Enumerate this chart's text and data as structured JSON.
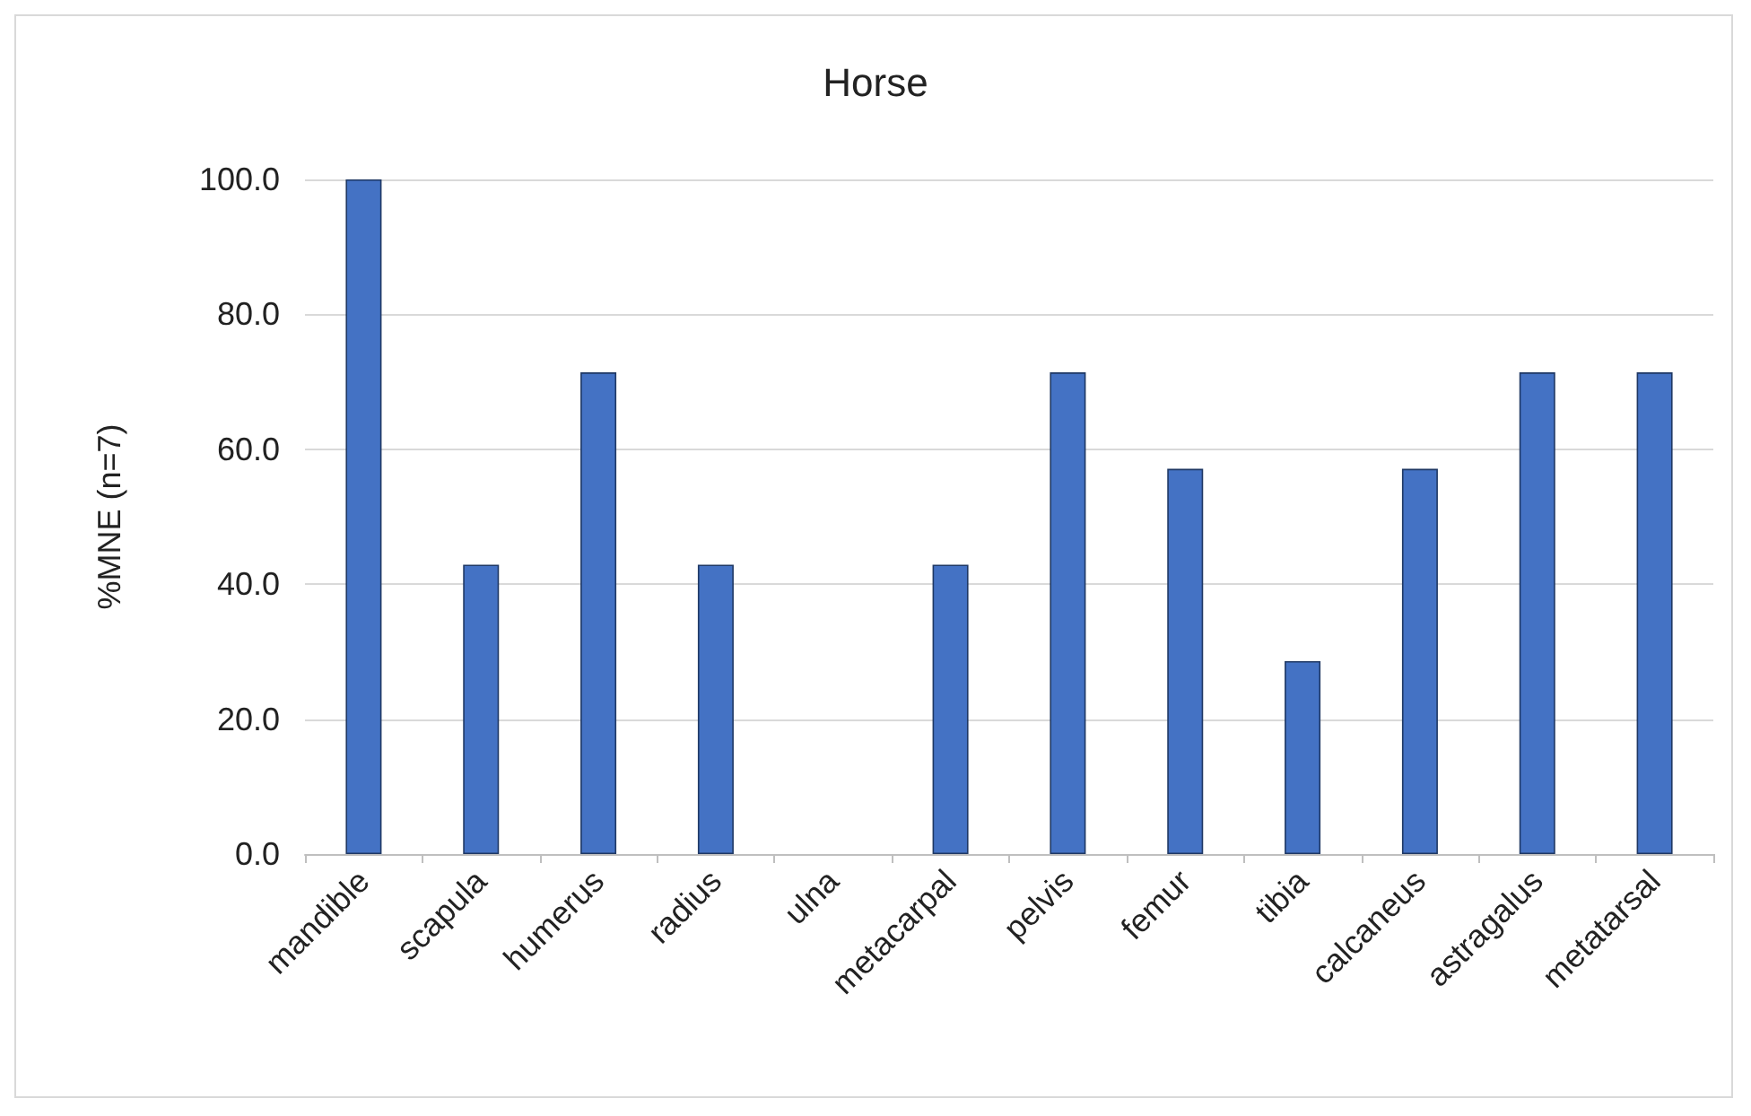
{
  "chart_data": {
    "type": "bar",
    "title": "Horse",
    "ylabel": "%MNE (n=7)",
    "categories": [
      "mandible",
      "scapula",
      "humerus",
      "radius",
      "ulna",
      "metacarpal",
      "pelvis",
      "femur",
      "tibia",
      "calcaneus",
      "astragalus",
      "metatarsal"
    ],
    "values": [
      100,
      42.9,
      71.4,
      42.9,
      0,
      42.9,
      71.4,
      57.1,
      28.6,
      57.1,
      71.4,
      71.4
    ],
    "color": "#4472c4",
    "ylim": [
      0,
      100
    ],
    "yticks": [
      {
        "value": 0,
        "label": "0.0"
      },
      {
        "value": 20,
        "label": "20.0"
      },
      {
        "value": 40,
        "label": "40.0"
      },
      {
        "value": 60,
        "label": "60.0"
      },
      {
        "value": 80,
        "label": "80.0"
      },
      {
        "value": 100,
        "label": "100.0"
      }
    ],
    "grid": "y"
  }
}
